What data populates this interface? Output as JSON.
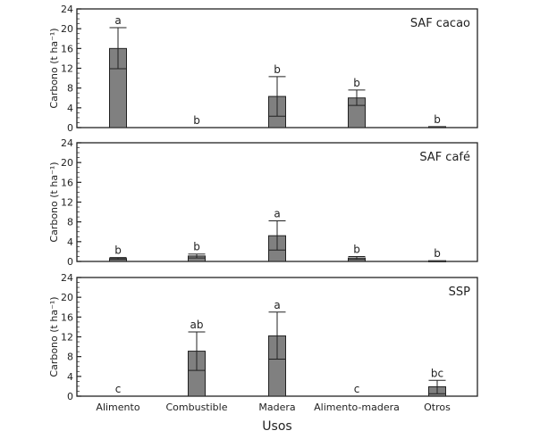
{
  "chart_data": [
    {
      "type": "bar",
      "panel_label": "SAF cacao",
      "ylabel": "Carbono (t ha⁻¹)",
      "ylim": [
        0,
        24
      ],
      "yticks": [
        "0",
        "4",
        "8",
        "12",
        "16",
        "20",
        "24"
      ],
      "categories": [
        "Alimento",
        "Combustible",
        "Madera",
        "Alimento-madera",
        "Otros"
      ],
      "values": [
        16.0,
        0,
        6.3,
        6.0,
        0.2
      ],
      "error_low": [
        11.9,
        0,
        2.3,
        4.5,
        0.2
      ],
      "error_high": [
        20.2,
        0,
        10.3,
        7.6,
        0.2
      ],
      "letters": [
        "a",
        "b",
        "b",
        "b",
        "b"
      ]
    },
    {
      "type": "bar",
      "panel_label": "SAF café",
      "ylabel": "Carbono (t ha⁻¹)",
      "ylim": [
        0,
        24
      ],
      "yticks": [
        "0",
        "4",
        "8",
        "12",
        "16",
        "20",
        "24"
      ],
      "categories": [
        "Alimento",
        "Combustible",
        "Madera",
        "Alimento-madera",
        "Otros"
      ],
      "values": [
        0.6,
        1.1,
        5.2,
        0.7,
        0.15
      ],
      "error_low": [
        0.4,
        0.7,
        2.3,
        0.4,
        0.15
      ],
      "error_high": [
        0.8,
        1.5,
        8.2,
        1.0,
        0.15
      ],
      "letters": [
        "b",
        "b",
        "a",
        "b",
        "b"
      ]
    },
    {
      "type": "bar",
      "panel_label": "SSP",
      "ylabel": "Carbono (t ha⁻¹)",
      "ylim": [
        0,
        24
      ],
      "yticks": [
        "0",
        "4",
        "8",
        "12",
        "16",
        "20",
        "24"
      ],
      "categories": [
        "Alimento",
        "Combustible",
        "Madera",
        "Alimento-madera",
        "Otros"
      ],
      "values": [
        0,
        9.1,
        12.2,
        0,
        1.9
      ],
      "error_low": [
        0,
        5.2,
        7.5,
        0,
        0.5
      ],
      "error_high": [
        0,
        13.0,
        17.0,
        0,
        3.2
      ],
      "letters": [
        "c",
        "ab",
        "a",
        "c",
        "bc"
      ],
      "xlabel": "Usos"
    }
  ],
  "colors": {
    "bar": "#808080",
    "axis": "#222222"
  }
}
